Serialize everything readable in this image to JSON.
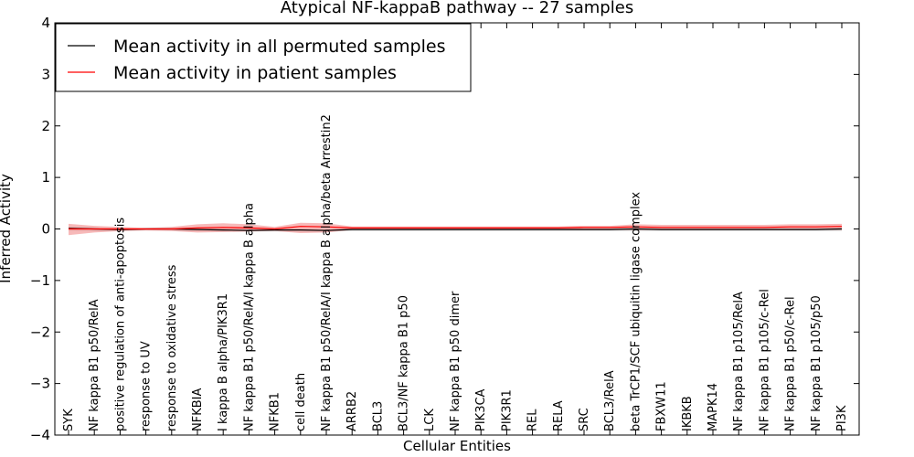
{
  "chart_data": {
    "type": "line",
    "title": "Atypical NF-kappaB pathway -- 27 samples",
    "xlabel": "Cellular Entities",
    "ylabel": "Inferred Activity",
    "ylim": [
      -4,
      4
    ],
    "yticks": [
      -4,
      -3,
      -2,
      -1,
      0,
      1,
      2,
      3,
      4
    ],
    "ytick_labels": [
      "−4",
      "−3",
      "−2",
      "−1",
      "0",
      "1",
      "2",
      "3",
      "4"
    ],
    "legend_position": "upper-left",
    "categories": [
      "SYK",
      "NF kappa B1 p50/RelA",
      "positive regulation of anti-apoptosis",
      "response to UV",
      "response to oxidative stress",
      "NFKBIA",
      "I kappa B alpha/PIK3R1",
      "NF kappa B1 p50/RelA/I kappa B alpha",
      "NFKB1",
      "cell death",
      "NF kappa B1 p50/RelA/I kappa B alpha/beta Arrestin2",
      "ARRB2",
      "BCL3",
      "BCL3/NF kappa B1 p50",
      "LCK",
      "NF kappa B1 p50 dimer",
      "PIK3CA",
      "PIK3R1",
      "REL",
      "RELA",
      "SRC",
      "BCL3/RelA",
      "beta TrCP1/SCF ubiquitin ligase complex",
      "FBXW11",
      "IKBKB",
      "MAPK14",
      "NF kappa B1 p105/RelA",
      "NF kappa B1 p105/c-Rel",
      "NF kappa B1 p50/c-Rel",
      "NF kappa B1 p105/p50",
      "PI3K"
    ],
    "series": [
      {
        "name": "Mean activity in all permuted samples",
        "color": "#000000",
        "values": [
          0.01,
          0.0,
          -0.01,
          0.0,
          0.0,
          -0.01,
          -0.02,
          -0.03,
          -0.02,
          -0.02,
          -0.03,
          -0.01,
          -0.01,
          -0.01,
          -0.01,
          -0.01,
          -0.01,
          -0.01,
          -0.01,
          -0.01,
          -0.01,
          -0.01,
          0.0,
          -0.01,
          -0.01,
          -0.01,
          -0.01,
          -0.01,
          -0.01,
          -0.01,
          0.0
        ],
        "band_lower": [
          -0.03,
          -0.04,
          -0.04,
          -0.02,
          -0.03,
          -0.04,
          -0.05,
          -0.05,
          -0.05,
          -0.05,
          -0.05,
          -0.04,
          -0.04,
          -0.04,
          -0.04,
          -0.04,
          -0.04,
          -0.04,
          -0.04,
          -0.04,
          -0.04,
          -0.04,
          -0.04,
          -0.04,
          -0.04,
          -0.04,
          -0.04,
          -0.04,
          -0.04,
          -0.04,
          -0.04
        ],
        "band_upper": [
          0.04,
          0.03,
          0.02,
          0.02,
          0.02,
          0.02,
          0.01,
          0.0,
          0.01,
          0.01,
          0.0,
          0.02,
          0.02,
          0.02,
          0.02,
          0.02,
          0.02,
          0.02,
          0.02,
          0.02,
          0.02,
          0.02,
          0.03,
          0.02,
          0.02,
          0.02,
          0.02,
          0.02,
          0.02,
          0.02,
          0.03
        ]
      },
      {
        "name": "Mean activity in patient samples",
        "color": "#ff0000",
        "band_color": "#f08080",
        "values": [
          0.0,
          0.0,
          0.0,
          0.0,
          0.0,
          0.02,
          0.03,
          0.02,
          0.0,
          0.05,
          0.04,
          0.02,
          0.02,
          0.02,
          0.02,
          0.02,
          0.02,
          0.02,
          0.02,
          0.02,
          0.03,
          0.03,
          0.04,
          0.03,
          0.03,
          0.03,
          0.03,
          0.03,
          0.04,
          0.04,
          0.05
        ],
        "band_lower": [
          -0.12,
          -0.07,
          -0.04,
          -0.03,
          -0.04,
          -0.07,
          -0.06,
          -0.05,
          -0.04,
          -0.08,
          -0.07,
          -0.02,
          -0.02,
          -0.02,
          -0.02,
          -0.02,
          -0.02,
          -0.02,
          -0.02,
          -0.02,
          -0.02,
          -0.02,
          -0.02,
          -0.02,
          -0.02,
          -0.02,
          -0.02,
          -0.02,
          -0.02,
          -0.02,
          -0.02
        ],
        "band_upper": [
          0.1,
          0.06,
          0.04,
          0.02,
          0.04,
          0.09,
          0.11,
          0.09,
          0.04,
          0.12,
          0.11,
          0.05,
          0.05,
          0.05,
          0.05,
          0.05,
          0.05,
          0.05,
          0.05,
          0.05,
          0.06,
          0.06,
          0.09,
          0.08,
          0.08,
          0.08,
          0.08,
          0.08,
          0.09,
          0.09,
          0.1
        ]
      }
    ]
  }
}
